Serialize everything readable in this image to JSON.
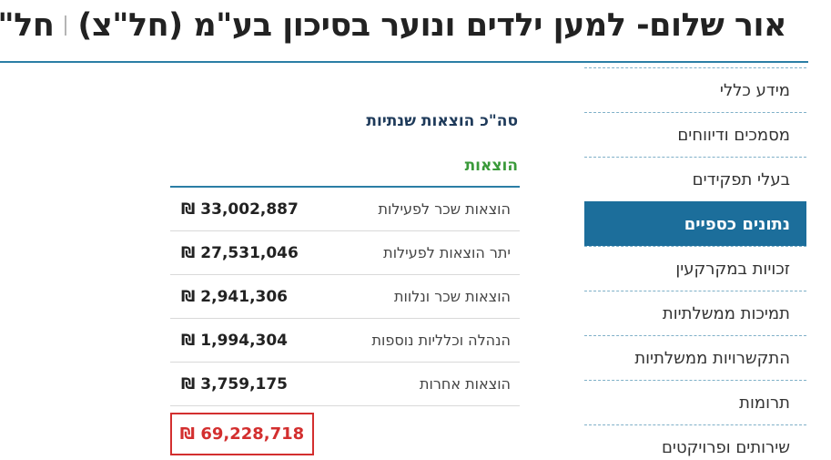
{
  "header": {
    "title_main": "אור שלום- למען ילדים ונוער בסיכון בע\"מ (חל\"צ)",
    "title_short": "חל\"צ"
  },
  "sidebar": {
    "items": [
      {
        "label": "מידע כללי"
      },
      {
        "label": "מסמכים ודיווחים"
      },
      {
        "label": "בעלי תפקידים"
      },
      {
        "label": "נתונים כספיים",
        "active": true
      },
      {
        "label": "זכויות במקרקעין"
      },
      {
        "label": "תמיכות ממשלתיות"
      },
      {
        "label": "התקשרויות ממשלתיות"
      },
      {
        "label": "תרומות"
      },
      {
        "label": "שירותים ופרויקטים"
      }
    ]
  },
  "main": {
    "section_title": "סה\"כ הוצאות שנתיות",
    "subsection_title": "הוצאות",
    "rows": [
      {
        "label": "הוצאות שכר לפעילות",
        "value": "₪ 33,002,887"
      },
      {
        "label": "יתר הוצאות לפעילות",
        "value": "₪ 27,531,046"
      },
      {
        "label": "הוצאות שכר ונלוות",
        "value": "₪ 2,941,306"
      },
      {
        "label": "הנהלה וכלליות נוספות",
        "value": "₪ 1,994,304"
      },
      {
        "label": "הוצאות אחרות",
        "value": "₪ 3,759,175"
      }
    ],
    "total": "₪ 69,228,718"
  }
}
